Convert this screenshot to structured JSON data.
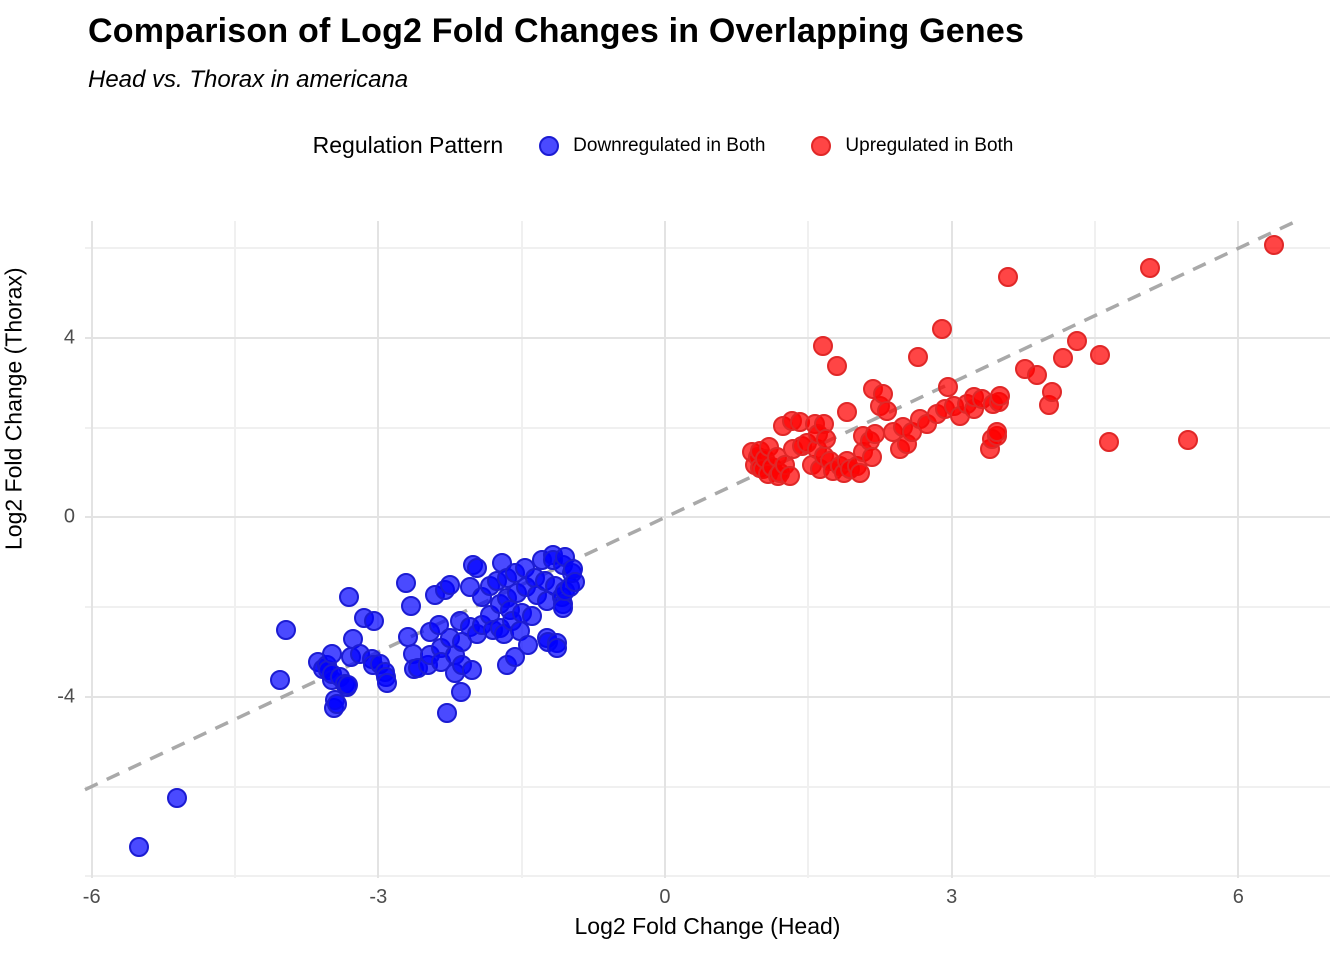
{
  "title": "Comparison of Log2 Fold Changes in Overlapping Genes",
  "subtitle": "Head vs. Thorax in americana",
  "legend": {
    "title": "Regulation Pattern",
    "items": [
      {
        "label": "Downregulated in Both",
        "fill": "rgba(0,0,255,0.71)",
        "stroke": "#1c1cd2"
      },
      {
        "label": "Upregulated in Both",
        "fill": "rgba(255,0,0,0.73)",
        "stroke": "#e02828"
      }
    ]
  },
  "chart_data": {
    "type": "scatter",
    "title": "Comparison of Log2 Fold Changes in Overlapping Genes",
    "subtitle": "Head vs. Thorax in americana",
    "xlabel": "Log2 Fold Change (Head)",
    "ylabel": "Log2 Fold Change (Thorax)",
    "xlim": [
      -6.07,
      6.96
    ],
    "ylim": [
      -8.04,
      6.61
    ],
    "x_ticks": [
      -6,
      -3,
      0,
      3,
      6
    ],
    "y_ticks": [
      -4,
      0,
      4
    ],
    "x_minor_gridlines": [
      -4.5,
      -1.5,
      1.5,
      4.5
    ],
    "y_minor_gridlines": [
      -8,
      -6,
      -2,
      2,
      6
    ],
    "grid": "on",
    "legend_position": "top",
    "identity_line": {
      "equation": "y = x",
      "style": "dashed",
      "color": "#a9a9a9"
    },
    "series": [
      {
        "name": "Downregulated in Both",
        "fill": "rgba(0,0,255,0.71)",
        "stroke": "#1c1cd2",
        "points": [
          [
            -5.5,
            -7.35
          ],
          [
            -5.11,
            -6.26
          ],
          [
            -4.03,
            -3.62
          ],
          [
            -3.97,
            -2.51
          ],
          [
            -3.63,
            -3.22
          ],
          [
            -3.58,
            -3.38
          ],
          [
            -3.54,
            -3.28
          ],
          [
            -3.53,
            -3.4
          ],
          [
            -3.49,
            -3.62
          ],
          [
            -3.49,
            -3.04
          ],
          [
            -3.48,
            -3.49
          ],
          [
            -3.46,
            -4.25
          ],
          [
            -3.45,
            -4.07
          ],
          [
            -3.43,
            -4.16
          ],
          [
            -3.4,
            -3.55
          ],
          [
            -3.35,
            -3.71
          ],
          [
            -3.33,
            -3.78
          ],
          [
            -3.32,
            -3.73
          ],
          [
            -3.31,
            -1.78
          ],
          [
            -3.29,
            -3.11
          ],
          [
            -3.27,
            -2.71
          ],
          [
            -3.19,
            -3.04
          ],
          [
            -3.15,
            -2.24
          ],
          [
            -3.07,
            -3.16
          ],
          [
            -3.06,
            -3.28
          ],
          [
            -3.05,
            -2.3
          ],
          [
            -2.98,
            -3.27
          ],
          [
            -2.93,
            -3.44
          ],
          [
            -2.92,
            -3.56
          ],
          [
            -2.91,
            -3.69
          ],
          [
            -2.71,
            -1.47
          ],
          [
            -2.69,
            -2.67
          ],
          [
            -2.66,
            -1.98
          ],
          [
            -2.64,
            -3.04
          ],
          [
            -2.63,
            -3.38
          ],
          [
            -2.59,
            -3.35
          ],
          [
            -2.48,
            -3.28
          ],
          [
            -2.46,
            -2.55
          ],
          [
            -2.46,
            -3.06
          ],
          [
            -2.41,
            -1.72
          ],
          [
            -2.36,
            -2.39
          ],
          [
            -2.34,
            -2.91
          ],
          [
            -2.34,
            -3.22
          ],
          [
            -2.3,
            -1.61
          ],
          [
            -2.28,
            -4.36
          ],
          [
            -2.25,
            -1.5
          ],
          [
            -2.25,
            -2.68
          ],
          [
            -2.2,
            -3.06
          ],
          [
            -2.2,
            -3.46
          ],
          [
            -2.15,
            -2.32
          ],
          [
            -2.13,
            -3.89
          ],
          [
            -2.12,
            -2.77
          ],
          [
            -2.12,
            -3.28
          ],
          [
            -2.04,
            -1.56
          ],
          [
            -2.04,
            -2.44
          ],
          [
            -2.02,
            -3.4
          ],
          [
            -2.01,
            -1.05
          ],
          [
            -1.97,
            -1.12
          ],
          [
            -1.97,
            -2.61
          ],
          [
            -1.92,
            -1.77
          ],
          [
            -1.92,
            -2.39
          ],
          [
            -1.83,
            -1.52
          ],
          [
            -1.83,
            -2.17
          ],
          [
            -1.8,
            -2.5
          ],
          [
            -1.76,
            -1.41
          ],
          [
            -1.73,
            -1.94
          ],
          [
            -1.73,
            -2.46
          ],
          [
            -1.71,
            -1.01
          ],
          [
            -1.68,
            -2.61
          ],
          [
            -1.65,
            -1.34
          ],
          [
            -1.65,
            -1.79
          ],
          [
            -1.65,
            -3.28
          ],
          [
            -1.62,
            -2.06
          ],
          [
            -1.6,
            -2.32
          ],
          [
            -1.57,
            -1.23
          ],
          [
            -1.57,
            -3.11
          ],
          [
            -1.55,
            -1.68
          ],
          [
            -1.52,
            -2.53
          ],
          [
            -1.5,
            -2.12
          ],
          [
            -1.47,
            -1.12
          ],
          [
            -1.45,
            -1.56
          ],
          [
            -1.43,
            -2.84
          ],
          [
            -1.39,
            -2.19
          ],
          [
            -1.36,
            -1.34
          ],
          [
            -1.34,
            -1.74
          ],
          [
            -1.29,
            -0.94
          ],
          [
            -1.26,
            -1.41
          ],
          [
            -1.24,
            -1.86
          ],
          [
            -1.24,
            -2.68
          ],
          [
            -1.22,
            -2.77
          ],
          [
            -1.17,
            -0.83
          ],
          [
            -1.17,
            -0.96
          ],
          [
            -1.15,
            -1.52
          ],
          [
            -1.13,
            -2.79
          ],
          [
            -1.13,
            -2.91
          ],
          [
            -1.08,
            -1.77
          ],
          [
            -1.07,
            -1.07
          ],
          [
            -1.07,
            -1.94
          ],
          [
            -1.07,
            -2.01
          ],
          [
            -1.05,
            -0.89
          ],
          [
            -1.05,
            -1.63
          ],
          [
            -0.99,
            -1.56
          ],
          [
            -0.97,
            -1.23
          ],
          [
            -0.96,
            -1.16
          ],
          [
            -0.94,
            -1.43
          ]
        ]
      },
      {
        "name": "Upregulated in Both",
        "fill": "rgba(255,0,0,0.73)",
        "stroke": "#e02828",
        "points": [
          [
            0.91,
            1.45
          ],
          [
            0.94,
            1.18
          ],
          [
            0.97,
            1.34
          ],
          [
            0.99,
            1.11
          ],
          [
            0.99,
            1.48
          ],
          [
            1.03,
            1.07
          ],
          [
            1.05,
            1.3
          ],
          [
            1.08,
            0.96
          ],
          [
            1.09,
            1.56
          ],
          [
            1.12,
            1.12
          ],
          [
            1.17,
            1.34
          ],
          [
            1.18,
            0.92
          ],
          [
            1.2,
            1.0
          ],
          [
            1.24,
            2.04
          ],
          [
            1.26,
            1.18
          ],
          [
            1.31,
            0.92
          ],
          [
            1.33,
            2.15
          ],
          [
            1.34,
            1.52
          ],
          [
            1.41,
            2.12
          ],
          [
            1.43,
            1.59
          ],
          [
            1.49,
            1.67
          ],
          [
            1.54,
            1.18
          ],
          [
            1.57,
            2.08
          ],
          [
            1.59,
            1.52
          ],
          [
            1.6,
            1.86
          ],
          [
            1.62,
            1.07
          ],
          [
            1.65,
            3.82
          ],
          [
            1.66,
            1.36
          ],
          [
            1.66,
            2.08
          ],
          [
            1.69,
            1.74
          ],
          [
            1.73,
            1.25
          ],
          [
            1.76,
            1.03
          ],
          [
            1.8,
            3.37
          ],
          [
            1.83,
            1.14
          ],
          [
            1.87,
            1.0
          ],
          [
            1.9,
            1.25
          ],
          [
            1.9,
            2.35
          ],
          [
            1.94,
            1.07
          ],
          [
            2.01,
            1.14
          ],
          [
            2.04,
            1.0
          ],
          [
            2.07,
            1.45
          ],
          [
            2.07,
            1.81
          ],
          [
            2.15,
            1.7
          ],
          [
            2.17,
            1.34
          ],
          [
            2.18,
            2.86
          ],
          [
            2.2,
            1.86
          ],
          [
            2.25,
            2.48
          ],
          [
            2.28,
            2.75
          ],
          [
            2.32,
            2.37
          ],
          [
            2.39,
            1.9
          ],
          [
            2.46,
            1.52
          ],
          [
            2.49,
            2.01
          ],
          [
            2.53,
            1.63
          ],
          [
            2.59,
            1.9
          ],
          [
            2.65,
            3.58
          ],
          [
            2.67,
            2.19
          ],
          [
            2.74,
            2.08
          ],
          [
            2.85,
            2.3
          ],
          [
            2.9,
            4.2
          ],
          [
            2.93,
            2.41
          ],
          [
            2.96,
            2.91
          ],
          [
            3.02,
            2.48
          ],
          [
            3.09,
            2.26
          ],
          [
            3.16,
            2.53
          ],
          [
            3.23,
            2.41
          ],
          [
            3.23,
            2.68
          ],
          [
            3.32,
            2.64
          ],
          [
            3.4,
            1.52
          ],
          [
            3.42,
            1.74
          ],
          [
            3.43,
            2.53
          ],
          [
            3.48,
            1.81
          ],
          [
            3.48,
            1.9
          ],
          [
            3.5,
            2.57
          ],
          [
            3.51,
            2.7
          ],
          [
            3.59,
            5.36
          ],
          [
            3.77,
            3.31
          ],
          [
            3.89,
            3.17
          ],
          [
            4.02,
            2.5
          ],
          [
            4.05,
            2.79
          ],
          [
            4.17,
            3.55
          ],
          [
            4.31,
            3.93
          ],
          [
            4.55,
            3.62
          ],
          [
            4.65,
            1.68
          ],
          [
            5.08,
            5.56
          ],
          [
            5.47,
            1.72
          ],
          [
            6.37,
            6.08
          ]
        ]
      }
    ]
  }
}
